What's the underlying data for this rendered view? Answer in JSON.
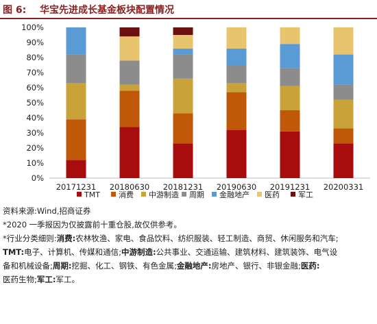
{
  "header": {
    "figure_label": "图 6:",
    "title": "华宝先进成长基金板块配置情况"
  },
  "chart_data": {
    "type": "bar",
    "stacked": true,
    "categories": [
      "20171231",
      "20180630",
      "20181231",
      "20190630",
      "20191231",
      "20200331"
    ],
    "ylim": [
      0,
      100
    ],
    "yticks": [
      "0%",
      "10%",
      "20%",
      "30%",
      "40%",
      "50%",
      "60%",
      "70%",
      "80%",
      "90%",
      "100%"
    ],
    "legend_position": "bottom",
    "series": [
      {
        "name": "TMT",
        "color": "#a80d0d",
        "values": [
          12,
          34,
          23,
          32,
          31,
          23
        ]
      },
      {
        "name": "消费",
        "color": "#c0580a",
        "values": [
          27,
          24,
          20,
          25,
          14,
          10
        ]
      },
      {
        "name": "中游制造",
        "color": "#c9a23a",
        "values": [
          24,
          4,
          23,
          6,
          16,
          19
        ]
      },
      {
        "name": "周期",
        "color": "#8c8c8c",
        "values": [
          19,
          16,
          16,
          12,
          12,
          10
        ]
      },
      {
        "name": "金融地产",
        "color": "#5b9bd5",
        "values": [
          18,
          0,
          4,
          11,
          16,
          20
        ]
      },
      {
        "name": "医药",
        "color": "#e8c46e",
        "values": [
          0,
          16,
          9,
          14,
          11,
          18
        ]
      },
      {
        "name": "军工",
        "color": "#6b0f0f",
        "values": [
          0,
          6,
          5,
          0,
          0,
          0
        ]
      }
    ]
  },
  "footer": {
    "source": "资料来源:Wind,招商证券",
    "note1": "*2020 一季报因为仅披露前十重仓股,故仅供参考。",
    "classification_prefix": "*行业分类细则:",
    "c1_label": "消费:",
    "c1_text": "农林牧渔、家电、食品饮料、纺织服装、轻工制造、商贸、休闲服务和汽车;",
    "c2_label": "TMT:",
    "c2_text": "电子、计算机、传媒和通信;",
    "c3_label": "中游制造:",
    "c3_text": "公共事业、交通运输、建筑材料、建筑装饰、电气设",
    "c3_text_cont": "备和机械设备;",
    "c4_label": "周期:",
    "c4_text": "挖掘、化工、钢铁、有色金属;",
    "c5_label": "金融地产:",
    "c5_text": "房地产、银行、非银金融;",
    "c6_label": "医药:",
    "c7_text_pre": "医药生物;",
    "c7_label": "军工:",
    "c7_text": "军工。"
  }
}
